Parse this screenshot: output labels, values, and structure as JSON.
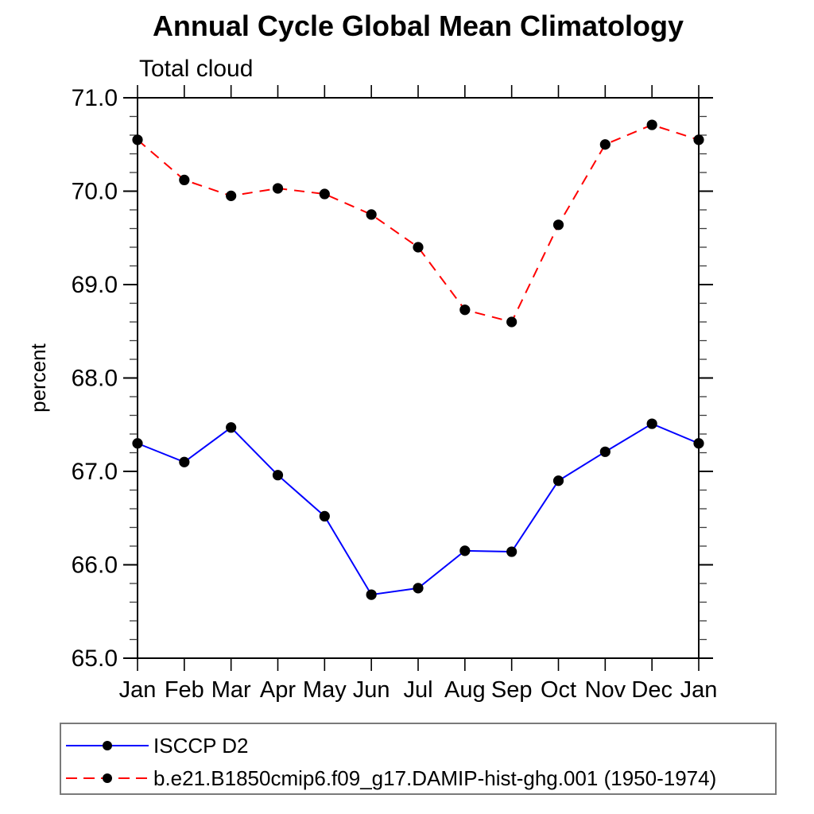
{
  "chart_data": {
    "type": "line",
    "title": "Annual Cycle Global Mean Climatology",
    "subtitle": "Total cloud",
    "ylabel": "percent",
    "ylim": [
      65.0,
      71.0
    ],
    "ytick_step": 1.0,
    "yminor_step": 0.2,
    "ytick_labels": [
      "65.0",
      "66.0",
      "67.0",
      "68.0",
      "69.0",
      "70.0",
      "71.0"
    ],
    "categories": [
      "Jan",
      "Feb",
      "Mar",
      "Apr",
      "May",
      "Jun",
      "Jul",
      "Aug",
      "Sep",
      "Oct",
      "Nov",
      "Dec",
      "Jan"
    ],
    "grid": false,
    "legend_position": "bottom-left-box",
    "axis_color": "#000000",
    "text_color": "#000000",
    "series": [
      {
        "name": "ISCCP D2",
        "color": "#0000ff",
        "line_style": "solid",
        "marker": "filled-circle",
        "marker_color": "#000000",
        "values": [
          67.3,
          67.1,
          67.47,
          66.96,
          66.52,
          65.68,
          65.75,
          66.15,
          66.14,
          66.9,
          67.21,
          67.51,
          67.3
        ]
      },
      {
        "name": "b.e21.B1850cmip6.f09_g17.DAMIP-hist-ghg.001 (1950-1974)",
        "color": "#ff0000",
        "line_style": "dashed",
        "marker": "filled-circle",
        "marker_color": "#000000",
        "values": [
          70.55,
          70.12,
          69.95,
          70.03,
          69.97,
          69.75,
          69.4,
          68.73,
          68.6,
          69.64,
          70.5,
          70.71,
          70.55
        ]
      }
    ]
  }
}
